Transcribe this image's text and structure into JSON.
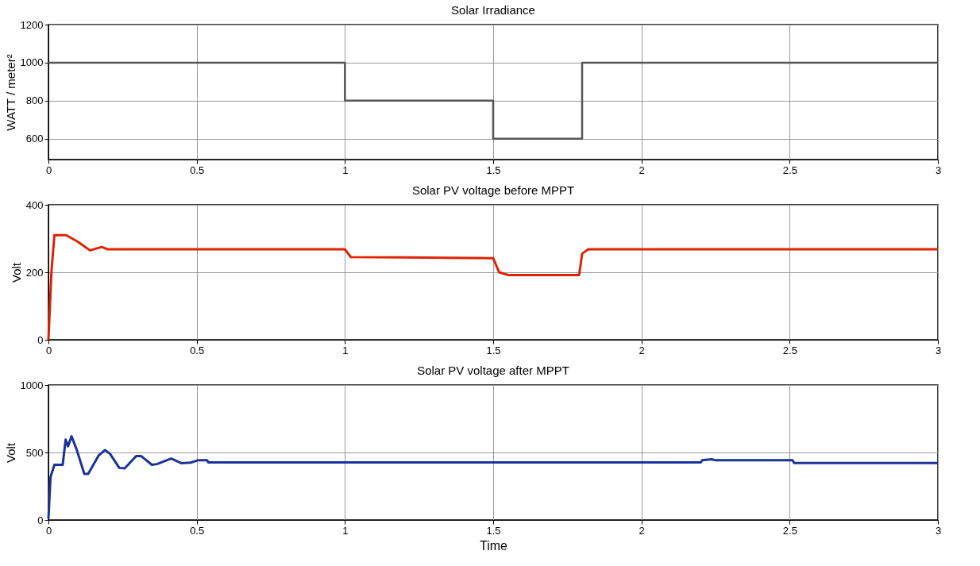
{
  "chart_data": [
    {
      "type": "step",
      "title": "Solar Irradiance",
      "ylabel": "WATT / meter²",
      "xlim": [
        0,
        3
      ],
      "xticks": [
        0,
        0.5,
        1,
        1.5,
        2,
        2.5,
        3
      ],
      "ylim": [
        490,
        1200
      ],
      "yticks": [
        600,
        800,
        1000,
        1200
      ],
      "grid": true,
      "x": [
        0,
        1,
        1.5,
        1.8,
        3
      ],
      "series": [
        {
          "color": "#555555",
          "values": [
            1000,
            800,
            600,
            1000,
            1000
          ]
        }
      ]
    },
    {
      "type": "line",
      "title": "Solar PV voltage before MPPT",
      "ylabel": "Volt",
      "xlim": [
        0,
        3
      ],
      "xticks": [
        0,
        0.5,
        1,
        1.5,
        2,
        2.5,
        3
      ],
      "ylim": [
        0,
        400
      ],
      "yticks": [
        0,
        200,
        400
      ],
      "grid": true,
      "x": [
        0,
        0.01,
        0.02,
        0.06,
        0.1,
        0.14,
        0.18,
        0.2,
        1.0,
        1.02,
        1.5,
        1.52,
        1.55,
        1.79,
        1.8,
        1.82,
        3
      ],
      "series": [
        {
          "color": "#dd2200",
          "values": [
            0,
            200,
            310,
            310,
            290,
            265,
            275,
            268,
            268,
            245,
            242,
            200,
            192,
            192,
            255,
            268,
            268
          ]
        }
      ]
    },
    {
      "type": "line",
      "title": "Solar PV voltage after MPPT",
      "xlabel": "Time",
      "ylabel": "Volt",
      "xlim": [
        0,
        3
      ],
      "xticks": [
        0,
        0.5,
        1,
        1.5,
        2,
        2.5,
        3
      ],
      "ylim": [
        0,
        1000
      ],
      "yticks": [
        0,
        500,
        1000
      ],
      "grid": true,
      "x": [
        0,
        0.007,
        0.02,
        0.048,
        0.058,
        0.066,
        0.078,
        0.095,
        0.121,
        0.134,
        0.169,
        0.191,
        0.208,
        0.239,
        0.257,
        0.296,
        0.313,
        0.349,
        0.366,
        0.414,
        0.449,
        0.48,
        0.506,
        0.535,
        0.539,
        2.2,
        2.205,
        2.237,
        2.25,
        2.51,
        2.515,
        3
      ],
      "series": [
        {
          "color": "#1a3399",
          "values": [
            11,
            318,
            409,
            409,
            595,
            545,
            620,
            523,
            341,
            341,
            477,
            518,
            489,
            386,
            382,
            473,
            473,
            409,
            414,
            455,
            420,
            425,
            443,
            443,
            427,
            427,
            442,
            450,
            442,
            442,
            422,
            422
          ]
        }
      ]
    }
  ]
}
